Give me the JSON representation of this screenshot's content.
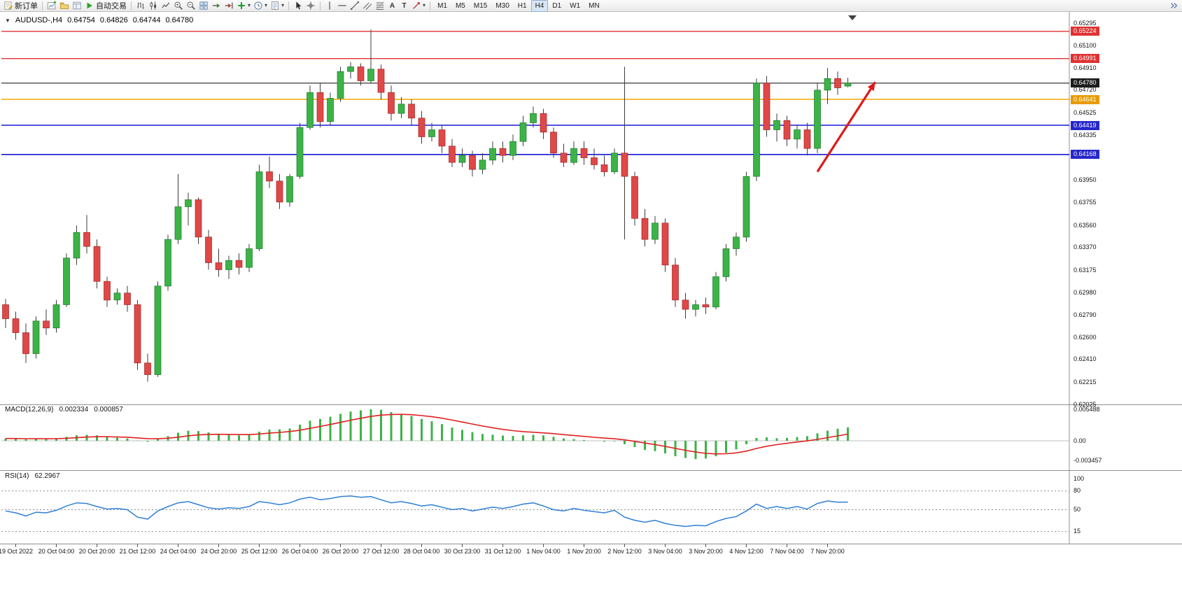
{
  "toolbar": {
    "new_order_label": "新订单",
    "autotrading_label": "自动交易",
    "timeframes": [
      "M1",
      "M5",
      "M15",
      "M30",
      "H1",
      "H4",
      "D1",
      "W1",
      "MN"
    ],
    "active_timeframe": "H4"
  },
  "icons": {
    "collapse": "▼",
    "dropdown": "▾",
    "text_tool": "A",
    "label_tool": "T"
  },
  "chart": {
    "symbol_period": "AUDUSD-,H4",
    "open": "0.64754",
    "high": "0.64826",
    "low": "0.64744",
    "close": "0.64780"
  },
  "price_axis": {
    "labels": [
      "0.65295",
      "0.65100",
      "0.64910",
      "0.64720",
      "0.64525",
      "0.64335",
      "0.64145",
      "0.63950",
      "0.63755",
      "0.63560",
      "0.63370",
      "0.63175",
      "0.62980",
      "0.62790",
      "0.62600",
      "0.62410",
      "0.62215",
      "0.62025"
    ],
    "badges": [
      {
        "text": "0.65224",
        "price": 0.65224,
        "color": "#e03232"
      },
      {
        "text": "0.64991",
        "price": 0.64991,
        "color": "#e03232"
      },
      {
        "text": "0.64780",
        "price": 0.6478,
        "color": "#1c1c1c"
      },
      {
        "text": "0.64641",
        "price": 0.64641,
        "color": "#e89b00"
      },
      {
        "text": "0.64419",
        "price": 0.64419,
        "color": "#2626cc"
      },
      {
        "text": "0.64168",
        "price": 0.64168,
        "color": "#2626cc"
      }
    ]
  },
  "hlines": [
    {
      "price": 0.65224,
      "color": "#e03232",
      "width": 1.3
    },
    {
      "price": 0.64991,
      "color": "#e03232",
      "width": 1.3
    },
    {
      "price": 0.6478,
      "color": "#202020",
      "width": 1.2
    },
    {
      "price": 0.64641,
      "color": "#f0a800",
      "width": 1.6
    },
    {
      "price": 0.64419,
      "color": "#1818d8",
      "width": 1.6
    },
    {
      "price": 0.64168,
      "color": "#1818d8",
      "width": 1.6
    }
  ],
  "annotations": {
    "arrow": {
      "from_bar": 80,
      "from_price": 0.6402,
      "to_bar": 85.7,
      "to_price": 0.6479,
      "color": "#e01818"
    }
  },
  "macd": {
    "name": "MACD(12,26,9)",
    "value1": "0.002334",
    "value2": "0.000857",
    "axis_labels": [
      "0.005488",
      "0.00",
      "-0.003457"
    ]
  },
  "rsi": {
    "name": "RSI(14)",
    "value": "62.2967",
    "axis_labels": [
      "100",
      "80",
      "50",
      "15"
    ],
    "levels": [
      80,
      50,
      15
    ]
  },
  "time_axis": {
    "start_index": 1,
    "step": 4,
    "labels": [
      "19 Oct 2022",
      "20 Oct 04:00",
      "20 Oct 20:00",
      "21 Oct 12:00",
      "24 Oct 04:00",
      "24 Oct 20:00",
      "25 Oct 12:00",
      "26 Oct 04:00",
      "26 Oct 20:00",
      "27 Oct 12:00",
      "28 Oct 04:00",
      "30 Oct 23:00",
      "31 Oct 12:00",
      "1 Nov 04:00",
      "1 Nov 20:00",
      "2 Nov 12:00",
      "3 Nov 04:00",
      "3 Nov 20:00",
      "4 Nov 12:00",
      "7 Nov 04:00",
      "7 Nov 20:00"
    ]
  },
  "colors": {
    "up": "#3cb347",
    "down": "#e04848",
    "up_border": "#1d7a2d",
    "down_border": "#9b2626",
    "macd_histogram": "#3cb347",
    "macd_signal": "#e02020",
    "rsi_line": "#2f7fd6",
    "wick": "#3c3c3c"
  },
  "chart_data": {
    "type": "candlestick",
    "symbol": "AUDUSD-,H4",
    "timeframe": "H4",
    "price_range": [
      0.62025,
      0.65295
    ],
    "macd_range": [
      -0.003457,
      0.005488
    ],
    "rsi_range": [
      0,
      100
    ],
    "candles": [
      [
        0.6288,
        0.6293,
        0.6268,
        0.6276
      ],
      [
        0.6276,
        0.6282,
        0.6258,
        0.6264
      ],
      [
        0.6264,
        0.6272,
        0.6238,
        0.6246
      ],
      [
        0.6246,
        0.6278,
        0.6242,
        0.6274
      ],
      [
        0.6274,
        0.6284,
        0.6262,
        0.6268
      ],
      [
        0.6268,
        0.6292,
        0.6264,
        0.6288
      ],
      [
        0.6288,
        0.6332,
        0.6286,
        0.6328
      ],
      [
        0.6328,
        0.6356,
        0.6322,
        0.635
      ],
      [
        0.635,
        0.6365,
        0.6332,
        0.6338
      ],
      [
        0.6338,
        0.6344,
        0.6302,
        0.6308
      ],
      [
        0.6308,
        0.6312,
        0.6286,
        0.6292
      ],
      [
        0.6292,
        0.6302,
        0.6288,
        0.6298
      ],
      [
        0.6298,
        0.6304,
        0.6282,
        0.6288
      ],
      [
        0.6288,
        0.6292,
        0.6232,
        0.6238
      ],
      [
        0.6238,
        0.6246,
        0.6222,
        0.6228
      ],
      [
        0.6228,
        0.6308,
        0.6226,
        0.6304
      ],
      [
        0.6304,
        0.6348,
        0.63,
        0.6344
      ],
      [
        0.6344,
        0.64,
        0.634,
        0.6372
      ],
      [
        0.6372,
        0.6384,
        0.6356,
        0.6378
      ],
      [
        0.6378,
        0.638,
        0.634,
        0.6346
      ],
      [
        0.6346,
        0.6352,
        0.6318,
        0.6324
      ],
      [
        0.6324,
        0.6336,
        0.6312,
        0.6318
      ],
      [
        0.6318,
        0.633,
        0.631,
        0.6326
      ],
      [
        0.6326,
        0.6332,
        0.6314,
        0.632
      ],
      [
        0.632,
        0.634,
        0.6316,
        0.6336
      ],
      [
        0.6336,
        0.6408,
        0.6334,
        0.6402
      ],
      [
        0.6402,
        0.6415,
        0.6388,
        0.6394
      ],
      [
        0.6394,
        0.64,
        0.637,
        0.6376
      ],
      [
        0.6376,
        0.64,
        0.6372,
        0.6398
      ],
      [
        0.6398,
        0.6444,
        0.6396,
        0.644
      ],
      [
        0.644,
        0.6476,
        0.6438,
        0.647
      ],
      [
        0.647,
        0.6478,
        0.644,
        0.6445
      ],
      [
        0.6445,
        0.647,
        0.6442,
        0.6465
      ],
      [
        0.6465,
        0.6492,
        0.6462,
        0.6488
      ],
      [
        0.6488,
        0.6496,
        0.6482,
        0.6492
      ],
      [
        0.6492,
        0.6495,
        0.6476,
        0.648
      ],
      [
        0.648,
        0.6524,
        0.6478,
        0.649
      ],
      [
        0.649,
        0.6494,
        0.6464,
        0.647
      ],
      [
        0.647,
        0.6476,
        0.6446,
        0.6452
      ],
      [
        0.6452,
        0.6466,
        0.6448,
        0.646
      ],
      [
        0.646,
        0.6464,
        0.6442,
        0.6448
      ],
      [
        0.6448,
        0.6454,
        0.6426,
        0.6432
      ],
      [
        0.6432,
        0.6444,
        0.6428,
        0.6438
      ],
      [
        0.6438,
        0.6442,
        0.6418,
        0.6424
      ],
      [
        0.6424,
        0.643,
        0.6406,
        0.641
      ],
      [
        0.641,
        0.6422,
        0.6406,
        0.6416
      ],
      [
        0.6416,
        0.642,
        0.6398,
        0.6404
      ],
      [
        0.6404,
        0.6418,
        0.64,
        0.6412
      ],
      [
        0.6412,
        0.6428,
        0.6408,
        0.6422
      ],
      [
        0.6422,
        0.6428,
        0.641,
        0.6416
      ],
      [
        0.6416,
        0.6434,
        0.6412,
        0.6428
      ],
      [
        0.6428,
        0.645,
        0.6424,
        0.6444
      ],
      [
        0.6444,
        0.6458,
        0.644,
        0.6452
      ],
      [
        0.6452,
        0.6456,
        0.643,
        0.6436
      ],
      [
        0.6436,
        0.644,
        0.6414,
        0.6418
      ],
      [
        0.6418,
        0.6426,
        0.6406,
        0.641
      ],
      [
        0.641,
        0.6428,
        0.6408,
        0.6422
      ],
      [
        0.6422,
        0.6428,
        0.6408,
        0.6414
      ],
      [
        0.6414,
        0.6422,
        0.6404,
        0.6408
      ],
      [
        0.6408,
        0.6416,
        0.6398,
        0.6402
      ],
      [
        0.6402,
        0.6422,
        0.64,
        0.6418
      ],
      [
        0.6418,
        0.6492,
        0.6344,
        0.6398
      ],
      [
        0.6398,
        0.6402,
        0.6356,
        0.6362
      ],
      [
        0.6362,
        0.637,
        0.6338,
        0.6344
      ],
      [
        0.6344,
        0.6364,
        0.634,
        0.6358
      ],
      [
        0.6358,
        0.6362,
        0.6316,
        0.6322
      ],
      [
        0.6322,
        0.6328,
        0.6286,
        0.6292
      ],
      [
        0.6292,
        0.6298,
        0.6276,
        0.6284
      ],
      [
        0.6284,
        0.6292,
        0.6278,
        0.6288
      ],
      [
        0.6288,
        0.6294,
        0.628,
        0.6286
      ],
      [
        0.6286,
        0.6316,
        0.6284,
        0.6312
      ],
      [
        0.6312,
        0.634,
        0.6308,
        0.6336
      ],
      [
        0.6336,
        0.635,
        0.633,
        0.6346
      ],
      [
        0.6346,
        0.6402,
        0.6342,
        0.6398
      ],
      [
        0.6398,
        0.6482,
        0.6394,
        0.6478
      ],
      [
        0.6478,
        0.6484,
        0.6432,
        0.6438
      ],
      [
        0.6438,
        0.6452,
        0.6428,
        0.6446
      ],
      [
        0.6446,
        0.645,
        0.6424,
        0.643
      ],
      [
        0.643,
        0.6442,
        0.6422,
        0.6438
      ],
      [
        0.6438,
        0.6444,
        0.6416,
        0.6422
      ],
      [
        0.6422,
        0.6478,
        0.6418,
        0.6472
      ],
      [
        0.6472,
        0.6491,
        0.646,
        0.6482
      ],
      [
        0.6482,
        0.6488,
        0.6468,
        0.6474
      ],
      [
        0.64754,
        0.64826,
        0.64744,
        0.6478
      ]
    ],
    "macd_histogram": [
      0.0004,
      0.00035,
      0.00025,
      0.0003,
      0.00035,
      0.00045,
      0.0007,
      0.00095,
      0.00105,
      0.00095,
      0.0007,
      0.00055,
      0.0004,
      5e-05,
      -0.00015,
      0.0003,
      0.0008,
      0.0014,
      0.00175,
      0.0017,
      0.00145,
      0.0012,
      0.00105,
      0.00095,
      0.00105,
      0.0016,
      0.00195,
      0.002,
      0.00215,
      0.0028,
      0.0035,
      0.0038,
      0.0042,
      0.0047,
      0.0051,
      0.0053,
      0.0055,
      0.0054,
      0.005,
      0.0047,
      0.0043,
      0.0038,
      0.0034,
      0.0029,
      0.0023,
      0.0019,
      0.0015,
      0.0012,
      0.00105,
      0.0009,
      0.00085,
      0.00095,
      0.00105,
      0.00095,
      0.0007,
      0.0004,
      0.0003,
      0.00015,
      0,
      -0.00015,
      -0.0001,
      -0.0006,
      -0.0011,
      -0.0016,
      -0.0018,
      -0.0022,
      -0.0027,
      -0.003,
      -0.0032,
      -0.0031,
      -0.0027,
      -0.0021,
      -0.0015,
      -0.0006,
      0.0005,
      0.0006,
      0.00045,
      0.0005,
      0.00065,
      0.0008,
      0.0013,
      0.00175,
      0.0021,
      0.002334
    ],
    "rsi_values": [
      48,
      45,
      40,
      46,
      45,
      49,
      56,
      61,
      60,
      55,
      51,
      52,
      50,
      38,
      35,
      48,
      55,
      61,
      63,
      58,
      53,
      51,
      53,
      52,
      55,
      63,
      61,
      58,
      61,
      67,
      70,
      66,
      68,
      71,
      72,
      70,
      71,
      66,
      61,
      63,
      60,
      56,
      58,
      54,
      50,
      52,
      48,
      51,
      54,
      52,
      55,
      59,
      61,
      56,
      50,
      48,
      52,
      49,
      47,
      45,
      49,
      38,
      33,
      30,
      33,
      28,
      25,
      23,
      25,
      24,
      31,
      36,
      39,
      48,
      59,
      52,
      55,
      52,
      55,
      51,
      60,
      64,
      62,
      62.2967
    ]
  }
}
